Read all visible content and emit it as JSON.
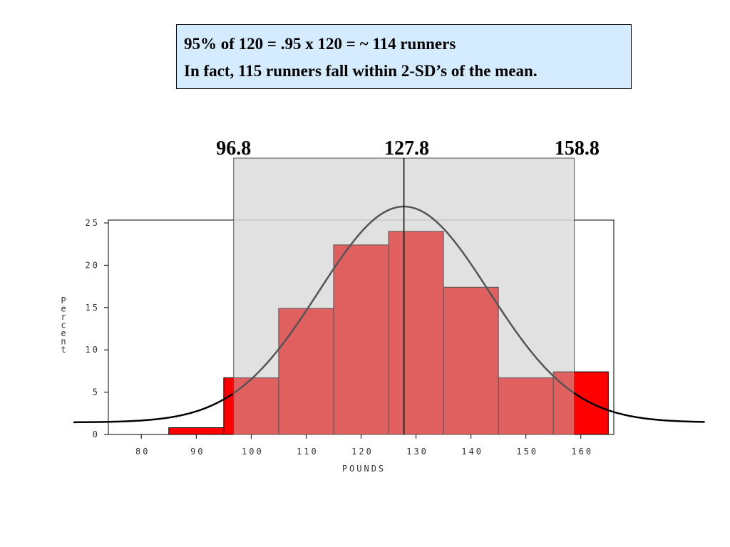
{
  "annotation": {
    "line1": "95%  of  120 = .95 x 120 = ~ 114 runners",
    "line2": "In fact, 115 runners fall within 2-SD’s of the mean."
  },
  "markers": {
    "lower": "96.8",
    "mean": "127.8",
    "upper": "158.8"
  },
  "chart_data": {
    "type": "bar",
    "title": "",
    "xlabel": "POUNDS",
    "ylabel": "Percent",
    "xlim": [
      74,
      166
    ],
    "ylim": [
      0,
      25
    ],
    "x_ticks": [
      80,
      90,
      100,
      110,
      120,
      130,
      140,
      150,
      160
    ],
    "y_ticks": [
      0,
      5,
      10,
      15,
      20,
      25
    ],
    "bins": [
      {
        "start": 85,
        "end": 95,
        "value": 0.8
      },
      {
        "start": 95,
        "end": 105,
        "value": 6.7
      },
      {
        "start": 105,
        "end": 115,
        "value": 14.9
      },
      {
        "start": 115,
        "end": 125,
        "value": 22.4
      },
      {
        "start": 125,
        "end": 135,
        "value": 24.0
      },
      {
        "start": 135,
        "end": 145,
        "value": 17.4
      },
      {
        "start": 145,
        "end": 155,
        "value": 6.7
      },
      {
        "start": 155,
        "end": 165,
        "value": 7.4
      }
    ],
    "shaded_interval": [
      96.8,
      158.8
    ],
    "mean": 127.8,
    "sd": 15.5,
    "colors": {
      "bar_outside": "#ff0000",
      "bar_inside": "#e06060",
      "shade": "#dcdcdc",
      "curve_inside": "#555555",
      "curve_outside": "#000000"
    }
  }
}
